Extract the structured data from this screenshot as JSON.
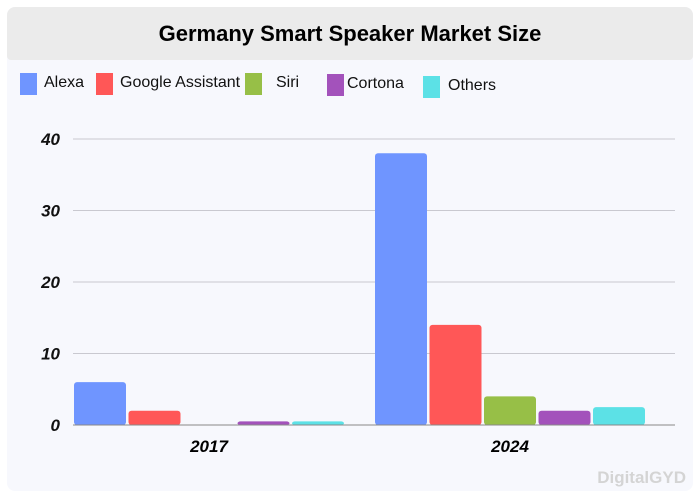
{
  "chart_data": {
    "type": "bar",
    "title": "Germany Smart Speaker Market Size",
    "categories": [
      "2017",
      "2024"
    ],
    "series": [
      {
        "name": "Alexa",
        "color": "#6f95ff",
        "values": [
          6,
          38
        ]
      },
      {
        "name": "Google Assistant",
        "color": "#ff5757",
        "values": [
          2,
          14
        ]
      },
      {
        "name": "Siri",
        "color": "#97bf47",
        "values": [
          0,
          4
        ]
      },
      {
        "name": "Cortona",
        "color": "#a352bb",
        "values": [
          0.5,
          2
        ]
      },
      {
        "name": "Others",
        "color": "#5ce1e6",
        "values": [
          0.5,
          2.5
        ]
      }
    ],
    "yticks": [
      "0",
      "10",
      "20",
      "30",
      "40"
    ],
    "ylim": [
      0,
      40
    ],
    "xlabel": "",
    "ylabel": "",
    "grid": true,
    "legend": "top"
  },
  "watermark": "DigitalGYD"
}
